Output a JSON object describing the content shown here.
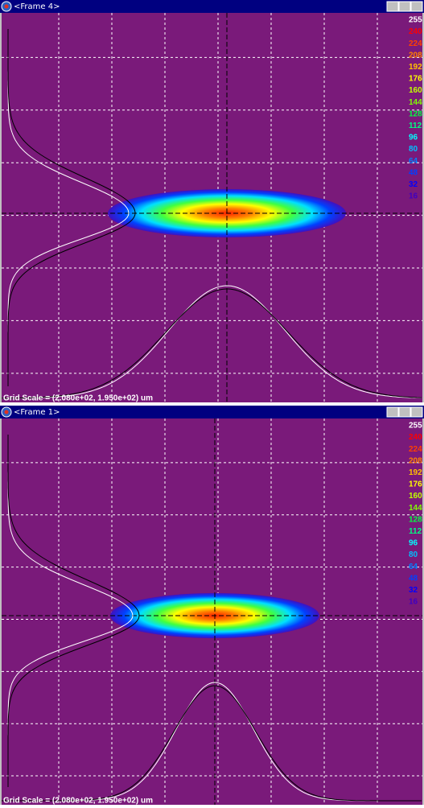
{
  "windows": [
    {
      "title": "<Frame 4>",
      "scale_labels": [
        "255",
        "240",
        "224",
        "208",
        "192",
        "176",
        "160",
        "144",
        "128",
        "112",
        "96",
        "80",
        "64",
        "48",
        "32",
        "16"
      ],
      "grid_scale": "Grid Scale = (2.080e+02, 1.950e+02) um"
    },
    {
      "title": "<Frame 1>",
      "scale_labels": [
        "255",
        "240",
        "224",
        "208",
        "192",
        "176",
        "160",
        "144",
        "128",
        "112",
        "96",
        "80",
        "64",
        "48",
        "32",
        "16"
      ],
      "grid_scale": "Grid Scale = (2.080e+02, 1.950e+02) um"
    }
  ]
}
